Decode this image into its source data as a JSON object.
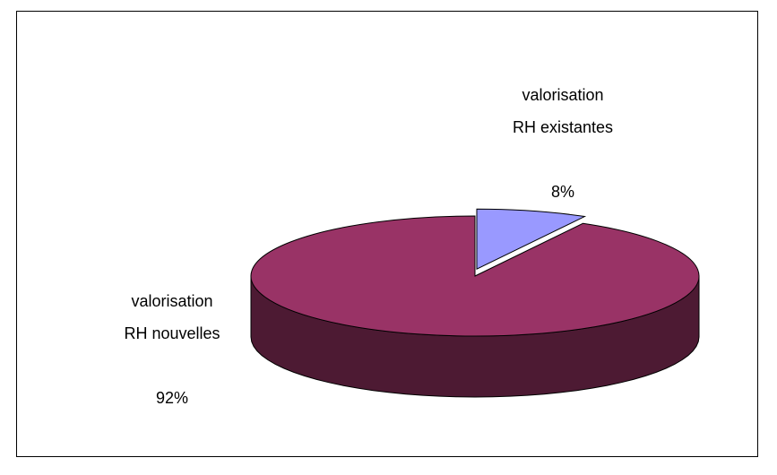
{
  "chart_data": {
    "type": "pie",
    "categories": [
      "valorisation RH existantes",
      "valorisation RH nouvelles"
    ],
    "values": [
      8,
      92
    ],
    "value_labels": [
      "8%",
      "92%"
    ],
    "colors": [
      "#9999ff",
      "#993366"
    ],
    "side_colors": [
      "#4d4d80",
      "#4d1a33"
    ]
  }
}
